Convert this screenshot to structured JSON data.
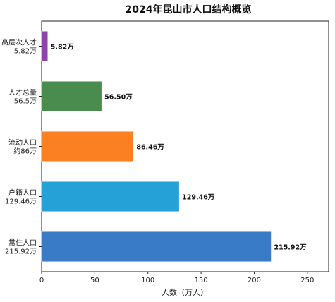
{
  "chart_data": {
    "type": "bar",
    "orientation": "horizontal",
    "title": "2024年昆山市人口结构概览",
    "xlabel": "人数（万人）",
    "ylabel": "",
    "xlim": [
      0,
      270
    ],
    "xticks": [
      0,
      50,
      100,
      150,
      200,
      250
    ],
    "grid": false,
    "bars": [
      {
        "label_line1": "高层次人才",
        "label_line2": "5.82万",
        "value": 5.82,
        "value_label": "5.82万",
        "color": "#8e44ad"
      },
      {
        "label_line1": "人才总量",
        "label_line2": "56.5万",
        "value": 56.5,
        "value_label": "56.50万",
        "color": "#4a8b4e"
      },
      {
        "label_line1": "流动人口",
        "label_line2": "约86万",
        "value": 86.46,
        "value_label": "86.46万",
        "color": "#fb8022"
      },
      {
        "label_line1": "户籍人口",
        "label_line2": "129.46万",
        "value": 129.46,
        "value_label": "129.46万",
        "color": "#26a1d8"
      },
      {
        "label_line1": "常住人口",
        "label_line2": "215.92万",
        "value": 215.92,
        "value_label": "215.92万",
        "color": "#3a7bc8"
      }
    ]
  }
}
